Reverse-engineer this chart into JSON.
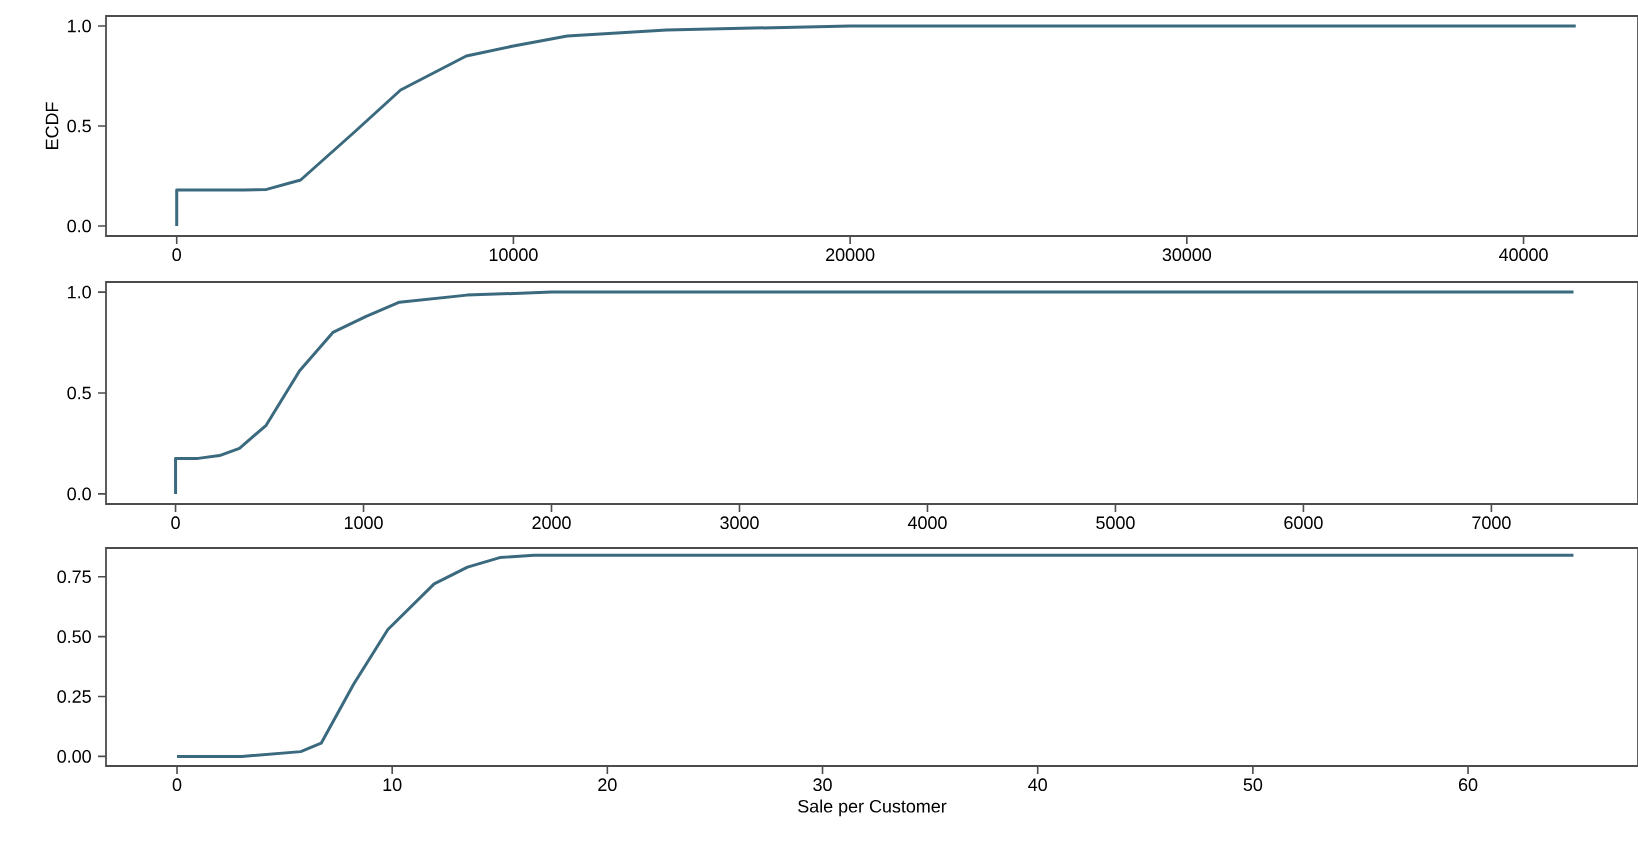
{
  "chart_data": [
    {
      "type": "line",
      "ylabel": "ECDF",
      "color": "#3b6a7f",
      "xlim": [
        -2100,
        43400
      ],
      "ylim": [
        -0.05,
        1.05
      ],
      "xticks": [
        0,
        10000,
        20000,
        30000,
        40000
      ],
      "yticks": [
        {
          "value": 0,
          "label": "0.0"
        },
        {
          "value": 0.5,
          "label": "0.5"
        },
        {
          "value": 1,
          "label": "1.0"
        }
      ],
      "x": [
        0,
        0,
        1000,
        2000,
        2670,
        3680,
        5280,
        6650,
        8600,
        10000,
        11600,
        14550,
        20000,
        30000,
        41550
      ],
      "values": [
        0,
        0.18,
        0.18,
        0.18,
        0.183,
        0.23,
        0.47,
        0.68,
        0.85,
        0.9,
        0.95,
        0.98,
        1.0,
        1.0,
        1.0
      ]
    },
    {
      "type": "line",
      "color": "#3b6a7f",
      "xlim": [
        -370,
        7780
      ],
      "ylim": [
        -0.05,
        1.05
      ],
      "xticks": [
        0,
        1000,
        2000,
        3000,
        4000,
        5000,
        6000,
        7000
      ],
      "yticks": [
        {
          "value": 0,
          "label": "0.0"
        },
        {
          "value": 0.5,
          "label": "0.5"
        },
        {
          "value": 1,
          "label": "1.0"
        }
      ],
      "x": [
        0,
        0,
        120,
        234,
        340,
        482,
        660,
        837,
        1014,
        1191,
        1550,
        2000,
        4000,
        7437
      ],
      "values": [
        0,
        0.176,
        0.176,
        0.19,
        0.226,
        0.34,
        0.61,
        0.8,
        0.88,
        0.95,
        0.985,
        1.0,
        1.0,
        1.0
      ]
    },
    {
      "type": "line",
      "xlabel": "Sale per Customer",
      "color": "#3b6a7f",
      "xlim": [
        -3.3,
        67.9
      ],
      "ylim": [
        -0.04,
        0.87
      ],
      "xticks": [
        0,
        10,
        20,
        30,
        40,
        50,
        60
      ],
      "yticks": [
        {
          "value": 0,
          "label": "0.00"
        },
        {
          "value": 0.25,
          "label": "0.25"
        },
        {
          "value": 0.5,
          "label": "0.50"
        },
        {
          "value": 0.75,
          "label": "0.75"
        }
      ],
      "x": [
        0,
        3,
        5.75,
        6.7,
        8.2,
        9.8,
        11.95,
        13.5,
        15.0,
        16.6,
        30,
        64.9
      ],
      "values": [
        0,
        0,
        0.02,
        0.055,
        0.3,
        0.53,
        0.72,
        0.79,
        0.83,
        0.84,
        0.84,
        0.84
      ]
    }
  ]
}
